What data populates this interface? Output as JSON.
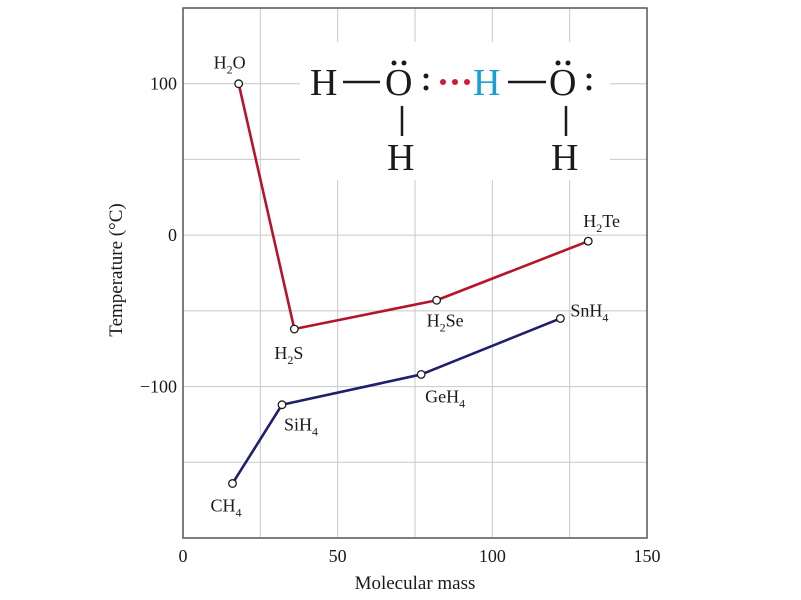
{
  "chart_data": {
    "type": "line",
    "xlabel": "Molecular mass",
    "ylabel": "Temperature (°C)",
    "xlim": [
      0,
      150
    ],
    "ylim": [
      -200,
      150
    ],
    "x_ticks": [
      0,
      50,
      100,
      150
    ],
    "y_ticks": [
      100,
      0,
      -100
    ],
    "y_tick_labels": [
      "100",
      "0",
      "−100"
    ],
    "grid": true,
    "series": [
      {
        "color": "#b5152b",
        "points": [
          {
            "x": 18,
            "y": 100,
            "label": "H",
            "sub": "2",
            "tail": "O"
          },
          {
            "x": 36,
            "y": -62,
            "label": "H",
            "sub": "2",
            "tail": "S"
          },
          {
            "x": 82,
            "y": -43,
            "label": "H",
            "sub": "2",
            "tail": "Se"
          },
          {
            "x": 131,
            "y": -4,
            "label": "H",
            "sub": "2",
            "tail": "Te"
          }
        ]
      },
      {
        "color": "#1f1f6e",
        "points": [
          {
            "x": 16,
            "y": -164,
            "label": "CH",
            "sub": "4",
            "tail": ""
          },
          {
            "x": 32,
            "y": -112,
            "label": "SiH",
            "sub": "4",
            "tail": ""
          },
          {
            "x": 77,
            "y": -92,
            "label": "GeH",
            "sub": "4",
            "tail": ""
          },
          {
            "x": 122,
            "y": -55,
            "label": "SnH",
            "sub": "4",
            "tail": ""
          }
        ]
      }
    ]
  },
  "inset": {
    "h_left": "H",
    "dash1": "—",
    "o_left": "O",
    "colon": ":",
    "hbond": "•••",
    "h_mid": "H",
    "dash2": "—",
    "o_right": "O",
    "colon2": ":",
    "h_below_left": "H",
    "h_below_right": "H",
    "bond_color": "#d0193c",
    "h_mid_color": "#1aa0d0"
  }
}
